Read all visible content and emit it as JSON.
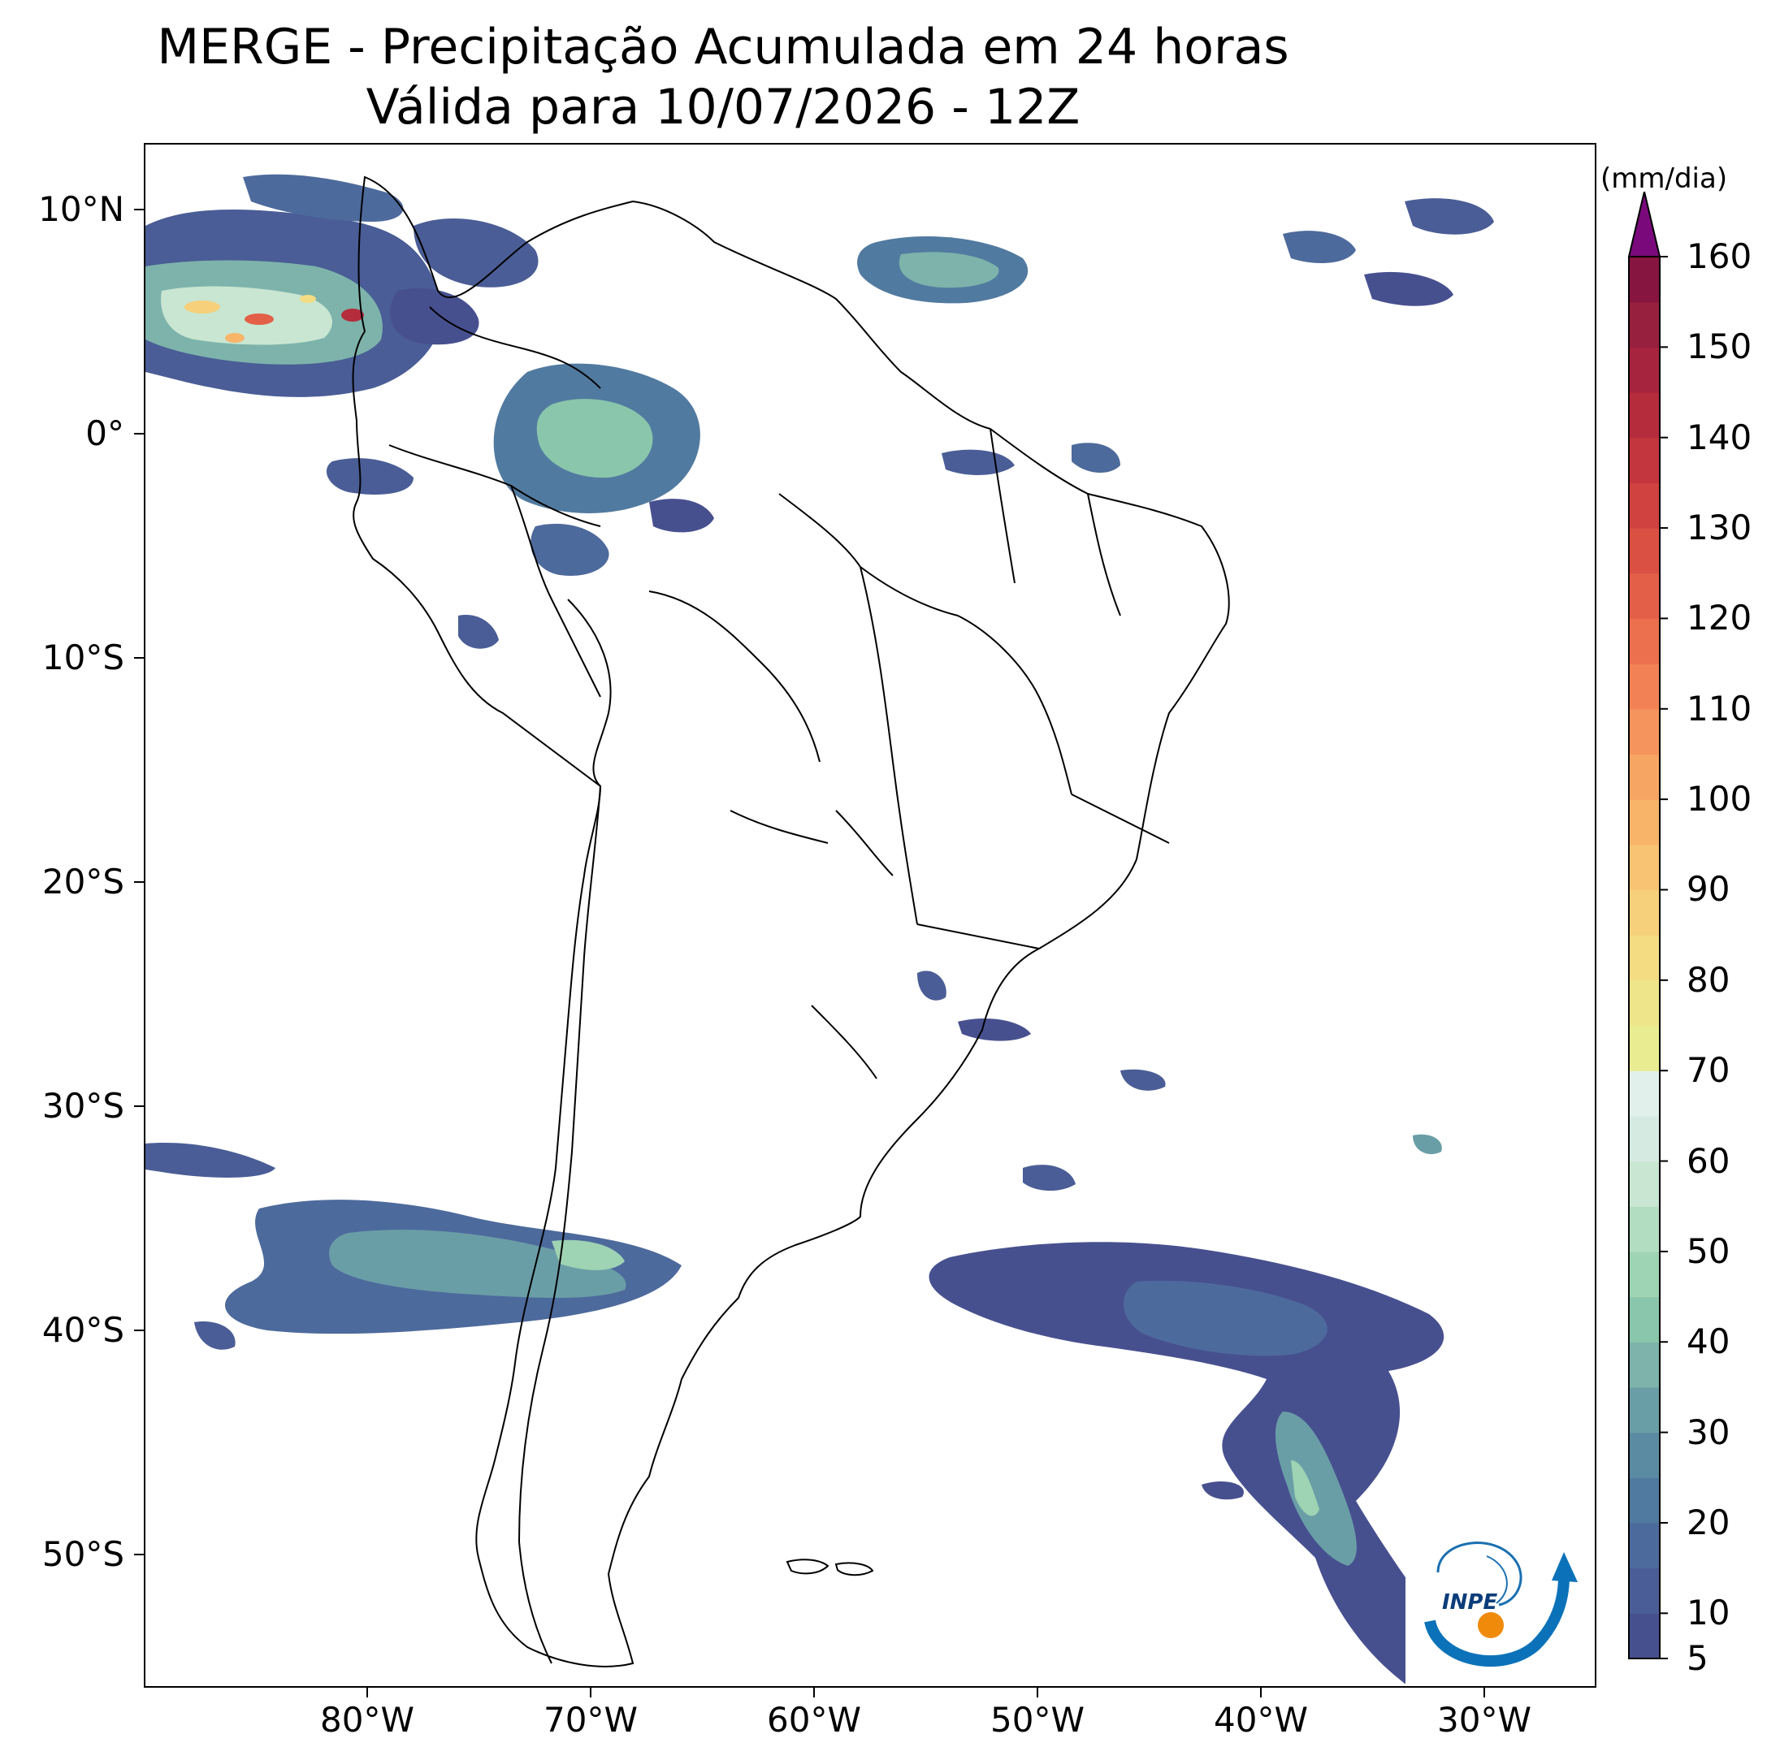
{
  "title": {
    "line1": "MERGE - Precipitação Acumulada em 24 horas",
    "line2": "Válida para 10/07/2026 - 12Z"
  },
  "map": {
    "extent": {
      "lon_min": -90,
      "lon_max": -25,
      "lat_min": -56,
      "lat_max": 13
    },
    "lat_ticks": [
      {
        "value": 10,
        "label": "10°N"
      },
      {
        "value": 0,
        "label": "0°"
      },
      {
        "value": -10,
        "label": "10°S"
      },
      {
        "value": -20,
        "label": "20°S"
      },
      {
        "value": -30,
        "label": "30°S"
      },
      {
        "value": -40,
        "label": "40°S"
      },
      {
        "value": -50,
        "label": "50°S"
      }
    ],
    "lon_ticks": [
      {
        "value": -80,
        "label": "80°W"
      },
      {
        "value": -70,
        "label": "70°W"
      },
      {
        "value": -60,
        "label": "60°W"
      },
      {
        "value": -50,
        "label": "50°W"
      },
      {
        "value": -40,
        "label": "40°W"
      },
      {
        "value": -30,
        "label": "30°W"
      }
    ],
    "colors": {
      "background": "#ffffff",
      "coastline": "#000000",
      "borders": "#000000"
    }
  },
  "colorbar": {
    "unit": "(mm/dia)",
    "levels": [
      5,
      10,
      15,
      20,
      25,
      30,
      35,
      40,
      45,
      50,
      55,
      60,
      65,
      70,
      75,
      80,
      85,
      90,
      95,
      100,
      105,
      110,
      115,
      120,
      125,
      130,
      135,
      140,
      145,
      150,
      155,
      160
    ],
    "tick_labels": [
      "5",
      "10",
      "20",
      "30",
      "40",
      "50",
      "60",
      "70",
      "80",
      "90",
      "100",
      "110",
      "120",
      "130",
      "140",
      "150",
      "160"
    ],
    "colors": [
      "#47508f",
      "#4a5d96",
      "#4d6a9c",
      "#517aa0",
      "#5a8ba3",
      "#6a9ea7",
      "#7db3ab",
      "#8ac6ab",
      "#9ed3b3",
      "#b3ddc0",
      "#c8e6d1",
      "#d5eae1",
      "#e1f0ea",
      "#e9ec90",
      "#eee58a",
      "#f3dc82",
      "#f6d07a",
      "#f8c473",
      "#f8b56a",
      "#f7a563",
      "#f5945c",
      "#f28255",
      "#ec704e",
      "#e45f48",
      "#da5043",
      "#cf423f",
      "#c3363d",
      "#b52c3c",
      "#a6243d",
      "#97203f",
      "#86153f"
    ],
    "extend_color": "#7a0a7c"
  },
  "logo": {
    "text": "INPE"
  }
}
